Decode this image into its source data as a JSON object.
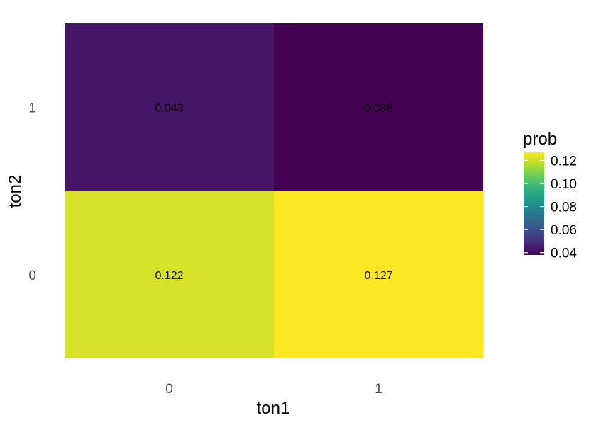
{
  "chart_data": {
    "type": "heatmap",
    "x": {
      "label": "ton1",
      "categories": [
        "0",
        "1"
      ]
    },
    "y": {
      "label": "ton2",
      "categories": [
        "0",
        "1"
      ]
    },
    "cells": [
      {
        "x": "0",
        "y": "1",
        "value": 0.043,
        "label": "0.043"
      },
      {
        "x": "1",
        "y": "1",
        "value": 0.038,
        "label": "0.038"
      },
      {
        "x": "0",
        "y": "0",
        "value": 0.122,
        "label": "0.122"
      },
      {
        "x": "1",
        "y": "0",
        "value": 0.127,
        "label": "0.127"
      }
    ],
    "legend": {
      "title": "prob",
      "range": [
        0.038,
        0.127
      ],
      "ticks": [
        {
          "value": 0.04,
          "label": "0.04"
        },
        {
          "value": 0.06,
          "label": "0.06"
        },
        {
          "value": 0.08,
          "label": "0.08"
        },
        {
          "value": 0.1,
          "label": "0.10"
        },
        {
          "value": 0.12,
          "label": "0.12"
        }
      ],
      "placement": "right"
    },
    "colormap": "viridis",
    "grid": false
  }
}
